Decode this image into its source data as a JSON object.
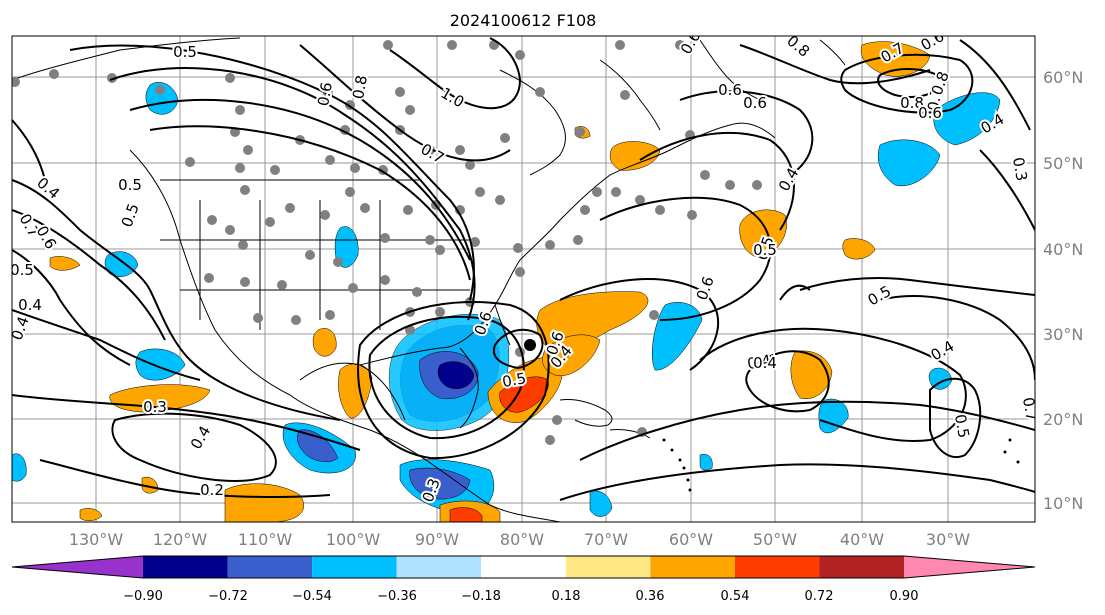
{
  "title": "2024100612 F108",
  "longitude_labels": [
    "130°W",
    "120°W",
    "110°W",
    "100°W",
    "90°W",
    "80°W",
    "70°W",
    "60°W",
    "50°W",
    "40°W",
    "30°W"
  ],
  "latitude_labels": [
    "60°N",
    "50°N",
    "40°N",
    "30°N",
    "20°N",
    "10°N"
  ],
  "colorbar": {
    "ticks": [
      "−0.90",
      "−0.72",
      "−0.54",
      "−0.36",
      "−0.18",
      "0.18",
      "0.36",
      "0.54",
      "0.72",
      "0.90"
    ],
    "colors": [
      "#9932cc",
      "#00008b",
      "#3a5fcd",
      "#00bfff",
      "#b0e2ff",
      "#ffffff",
      "#ffe886",
      "#ffa500",
      "#ff3c00",
      "#b22222",
      "#ff88b0"
    ]
  },
  "contour_labels": [
    "0.5",
    "0.6",
    "0.8",
    "1.0",
    "0.7",
    "0.6",
    "0.8",
    "0.4",
    "0.5",
    "0.4",
    "0.7",
    "0.6",
    "0.5",
    "0.4",
    "0.3",
    "0.4",
    "0.2",
    "0.3",
    "0.6",
    "0.4",
    "0.5",
    "0.6",
    "0.5",
    "0.4",
    "0.5",
    "0.4",
    "0.5",
    "0.6",
    "0.6",
    "0.7",
    "0.8",
    "0.7",
    "0.6",
    "0.8",
    "0.6",
    "0.4",
    "0.3",
    "0.4",
    "0.5",
    "0.7",
    "0.5",
    "0.4",
    "0.6"
  ]
}
